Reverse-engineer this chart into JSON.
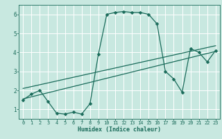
{
  "title": "",
  "xlabel": "Humidex (Indice chaleur)",
  "ylabel": "",
  "bg_color": "#c8e8e0",
  "plot_bg_color": "#c8e8e0",
  "line_color": "#1a6b5a",
  "grid_color": "#ffffff",
  "xlim": [
    -0.5,
    23.5
  ],
  "ylim": [
    0.5,
    6.5
  ],
  "xticks": [
    0,
    1,
    2,
    3,
    4,
    5,
    6,
    7,
    8,
    9,
    10,
    11,
    12,
    13,
    14,
    15,
    16,
    17,
    18,
    19,
    20,
    21,
    22,
    23
  ],
  "yticks": [
    1,
    2,
    3,
    4,
    5,
    6
  ],
  "curve_x": [
    0,
    1,
    2,
    3,
    4,
    5,
    6,
    7,
    8,
    9,
    10,
    11,
    12,
    13,
    14,
    15,
    16,
    17,
    18,
    19,
    20,
    21,
    22,
    23
  ],
  "curve_y": [
    1.5,
    1.8,
    2.0,
    1.4,
    0.8,
    0.75,
    0.85,
    0.75,
    1.3,
    3.9,
    6.0,
    6.1,
    6.15,
    6.1,
    6.1,
    6.0,
    5.5,
    3.0,
    2.6,
    1.9,
    4.2,
    4.0,
    3.5,
    4.1
  ],
  "line1_x": [
    0,
    23
  ],
  "line1_y": [
    1.55,
    4.05
  ],
  "line2_x": [
    0,
    23
  ],
  "line2_y": [
    2.1,
    4.35
  ],
  "markersize": 2.5
}
